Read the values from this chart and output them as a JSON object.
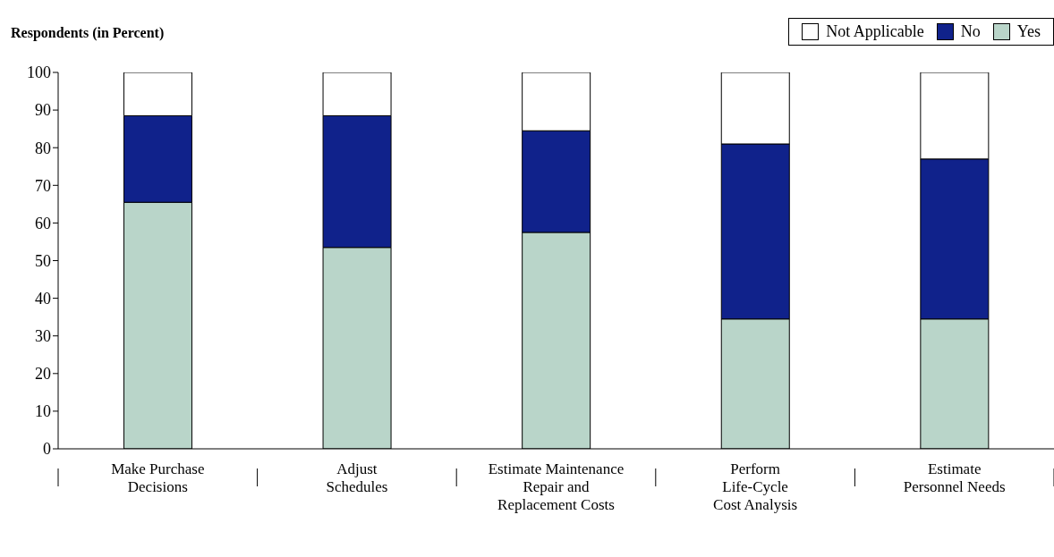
{
  "chart_data": {
    "type": "bar",
    "stacked": true,
    "ylabel": "Respondents (in Percent)",
    "categories": [
      "Make Purchase\nDecisions",
      "Adjust\nSchedules",
      "Estimate Maintenance\nRepair and\nReplacement Costs",
      "Perform\nLife-Cycle\nCost Analysis",
      "Estimate\nPersonnel Needs"
    ],
    "series": [
      {
        "name": "Yes",
        "color": "#b9d5c9",
        "values": [
          65.5,
          53.5,
          57.5,
          34.5,
          34.5
        ]
      },
      {
        "name": "No",
        "color": "#10228b",
        "values": [
          23,
          35,
          27,
          46.5,
          42.5
        ]
      },
      {
        "name": "Not Applicable",
        "color": "#ffffff",
        "values": [
          11.5,
          11.5,
          15.5,
          19,
          23
        ]
      }
    ],
    "ylim": [
      0,
      100
    ],
    "yticks": [
      0,
      10,
      20,
      30,
      40,
      50,
      60,
      70,
      80,
      90,
      100
    ],
    "grid": false,
    "legend": "top right"
  }
}
